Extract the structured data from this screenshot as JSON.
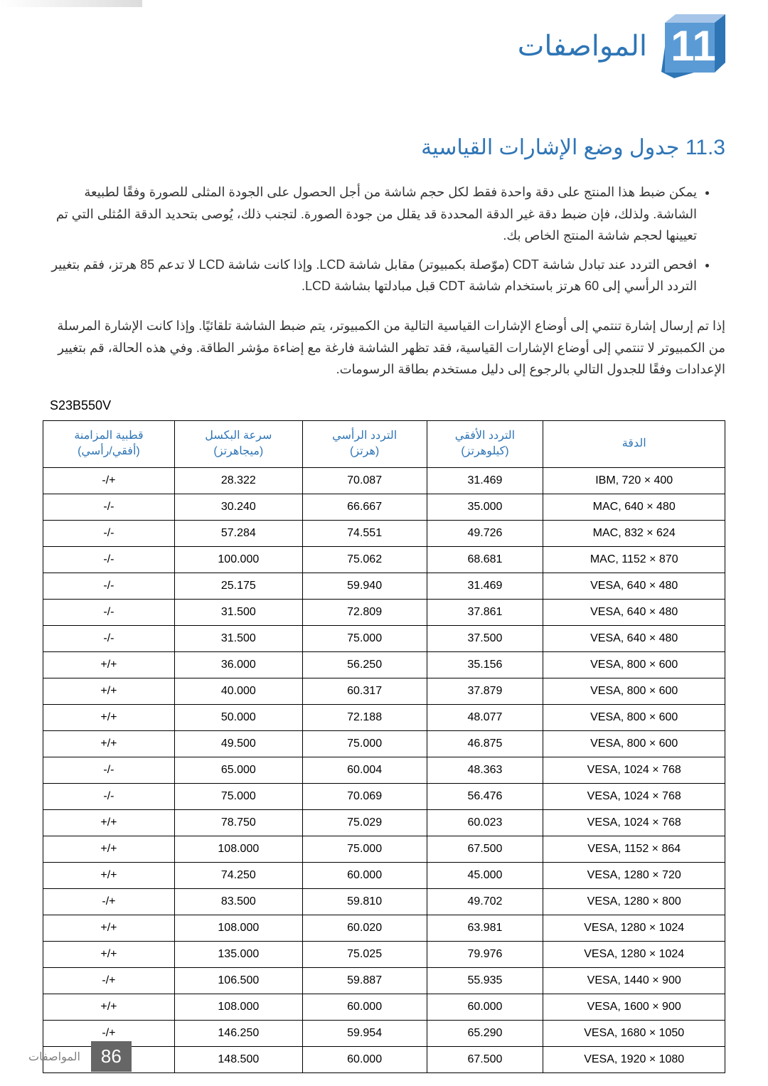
{
  "chapter": {
    "number": "11",
    "title": "المواصفات",
    "block_color": "#5b9bd5"
  },
  "section": {
    "number": "11.3",
    "title": "جدول وضع الإشارات القياسية"
  },
  "bullets": [
    "يمكن ضبط هذا المنتج على دقة واحدة فقط لكل حجم شاشة من أجل الحصول على الجودة المثلى للصورة وفقًا لطبيعة الشاشة. ولذلك، فإن ضبط دقة غير الدقة المحددة قد يقلل من جودة الصورة. لتجنب ذلك، يُوصى بتحديد الدقة المُثلى التي تم تعيينها لحجم شاشة المنتج الخاص بك.",
    "افحص التردد عند تبادل شاشة CDT (موّصلة بكمبيوتر) مقابل شاشة LCD. وإذا كانت شاشة LCD لا تدعم 85 هرتز، فقم بتغيير التردد الرأسي إلى 60 هرتز باستخدام شاشة CDT قبل مبادلتها بشاشة LCD."
  ],
  "paragraph": "إذا تم إرسال إشارة تنتمي إلى أوضاع الإشارات القياسية التالية من الكمبيوتر، يتم ضبط الشاشة تلقائيًا. وإذا كانت الإشارة المرسلة من الكمبيوتر لا تنتمي إلى أوضاع الإشارات القياسية، فقد تظهر الشاشة فارغة مع إضاءة مؤشر الطاقة. وفي هذه الحالة، قم بتغيير الإعدادات وفقًا للجدول التالي بالرجوع إلى دليل مستخدم بطاقة الرسومات.",
  "model": "S23B550V",
  "table": {
    "columns": [
      {
        "l1": "الدقة",
        "l2": ""
      },
      {
        "l1": "التردد الأفقي",
        "l2": "(كيلوهرتز)"
      },
      {
        "l1": "التردد الرأسي",
        "l2": "(هرتز)"
      },
      {
        "l1": "سرعة البكسل",
        "l2": "(ميجاهرتز)"
      },
      {
        "l1": "قطبية المزامنة",
        "l2": "(أفقي/رأسي)"
      }
    ],
    "rows": [
      [
        "IBM, 720 × 400",
        "31.469",
        "70.087",
        "28.322",
        "-/+"
      ],
      [
        "MAC, 640 × 480",
        "35.000",
        "66.667",
        "30.240",
        "-/-"
      ],
      [
        "MAC, 832 × 624",
        "49.726",
        "74.551",
        "57.284",
        "-/-"
      ],
      [
        "MAC, 1152 × 870",
        "68.681",
        "75.062",
        "100.000",
        "-/-"
      ],
      [
        "VESA, 640 × 480",
        "31.469",
        "59.940",
        "25.175",
        "-/-"
      ],
      [
        "VESA, 640 × 480",
        "37.861",
        "72.809",
        "31.500",
        "-/-"
      ],
      [
        "VESA, 640 × 480",
        "37.500",
        "75.000",
        "31.500",
        "-/-"
      ],
      [
        "VESA, 800 × 600",
        "35.156",
        "56.250",
        "36.000",
        "+/+"
      ],
      [
        "VESA, 800 × 600",
        "37.879",
        "60.317",
        "40.000",
        "+/+"
      ],
      [
        "VESA, 800 × 600",
        "48.077",
        "72.188",
        "50.000",
        "+/+"
      ],
      [
        "VESA, 800 × 600",
        "46.875",
        "75.000",
        "49.500",
        "+/+"
      ],
      [
        "VESA, 1024 × 768",
        "48.363",
        "60.004",
        "65.000",
        "-/-"
      ],
      [
        "VESA, 1024 × 768",
        "56.476",
        "70.069",
        "75.000",
        "-/-"
      ],
      [
        "VESA, 1024 × 768",
        "60.023",
        "75.029",
        "78.750",
        "+/+"
      ],
      [
        "VESA, 1152 × 864",
        "67.500",
        "75.000",
        "108.000",
        "+/+"
      ],
      [
        "VESA, 1280 × 720",
        "45.000",
        "60.000",
        "74.250",
        "+/+"
      ],
      [
        "VESA, 1280 × 800",
        "49.702",
        "59.810",
        "83.500",
        "-/+"
      ],
      [
        "VESA, 1280 × 1024",
        "63.981",
        "60.020",
        "108.000",
        "+/+"
      ],
      [
        "VESA, 1280 × 1024",
        "79.976",
        "75.025",
        "135.000",
        "+/+"
      ],
      [
        "VESA, 1440 × 900",
        "55.935",
        "59.887",
        "106.500",
        "-/+"
      ],
      [
        "VESA, 1600 × 900",
        "60.000",
        "60.000",
        "108.000",
        "+/+"
      ],
      [
        "VESA, 1680 × 1050",
        "65.290",
        "59.954",
        "146.250",
        "-/+"
      ],
      [
        "VESA, 1920 × 1080",
        "67.500",
        "60.000",
        "148.500",
        "+/+"
      ]
    ]
  },
  "footer": {
    "page_number": "86",
    "text": "المواصفات",
    "bg": "#666666"
  }
}
